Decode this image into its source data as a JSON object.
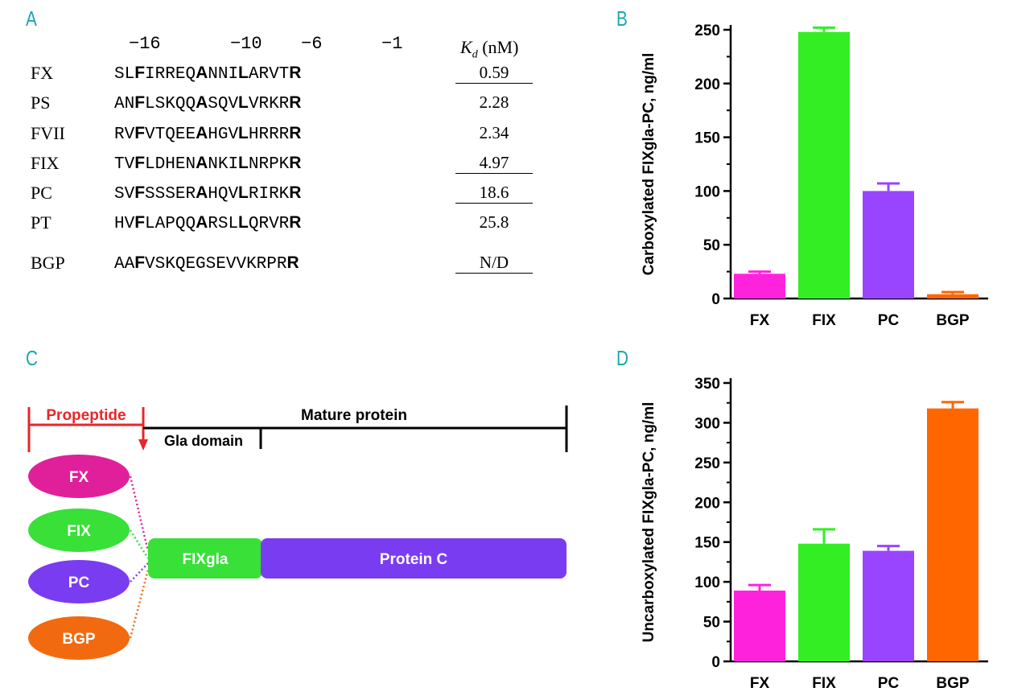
{
  "panels": {
    "a": "A",
    "b": "B",
    "c": "C",
    "d": "D"
  },
  "panel_a": {
    "positions": [
      "−16",
      "−10",
      "−6",
      "−1"
    ],
    "kd_header": {
      "k": "K",
      "sub": "d",
      "unit": "(nM)"
    },
    "rows": [
      {
        "name": "FX",
        "seq": [
          "SL",
          "F",
          "IRREQ",
          "A",
          "NNI",
          "L",
          "ARVT",
          "R"
        ],
        "kd": "0.59",
        "underline": true
      },
      {
        "name": "PS",
        "seq": [
          "AN",
          "F",
          "LSKQQ",
          "A",
          "SQV",
          "L",
          "VRKR",
          "R"
        ],
        "kd": "2.28",
        "underline": false
      },
      {
        "name": "FVII",
        "seq": [
          "RV",
          "F",
          "VTQEE",
          "A",
          "HGV",
          "L",
          "HRRR",
          "R"
        ],
        "kd": "2.34",
        "underline": false
      },
      {
        "name": "FIX",
        "seq": [
          "TV",
          "F",
          "LDHEN",
          "A",
          "NKI",
          "L",
          "NRPK",
          "R"
        ],
        "kd": "4.97",
        "underline": true
      },
      {
        "name": "PC",
        "seq": [
          "SV",
          "F",
          "SSSER",
          "A",
          "HQV",
          "L",
          "RIRK",
          "R"
        ],
        "kd": "18.6",
        "underline": true
      },
      {
        "name": "PT",
        "seq": [
          "HV",
          "F",
          "LAPQQ",
          "A",
          "RSL",
          "L",
          "QRVR",
          "R"
        ],
        "kd": "25.8",
        "underline": false
      },
      {
        "name": "BGP",
        "seq": [
          "AA",
          "F",
          "VSKQEGSEVVKRPR",
          "R"
        ],
        "kd": "N/D",
        "underline": true
      }
    ]
  },
  "panel_c": {
    "propeptide_label": "Propeptide",
    "mature_label": "Mature protein",
    "gla_label": "Gla domain",
    "ovals": [
      {
        "label": "FX",
        "color": "#e0209a"
      },
      {
        "label": "FIX",
        "color": "#38e038"
      },
      {
        "label": "PC",
        "color": "#7a3cf0"
      },
      {
        "label": "BGP",
        "color": "#f26a10"
      }
    ],
    "fixgla_label": "FIXgla",
    "protein_c_label": "Protein C",
    "fixgla_color": "#38e038",
    "protein_c_color": "#7a3cf0",
    "propeptide_color": "#e8262a"
  },
  "chart_data": [
    {
      "type": "bar",
      "categories": [
        "FX",
        "FIX",
        "PC",
        "BGP"
      ],
      "values": [
        23,
        248,
        100,
        4
      ],
      "errors": [
        2,
        4,
        7,
        2
      ],
      "colors": [
        "#ff22dd",
        "#33ee22",
        "#9944ff",
        "#ff6600"
      ],
      "ylabel": "Carboxylated FIXgla-PC, ng/ml",
      "ylim": [
        0,
        250
      ],
      "yticks": [
        0,
        50,
        100,
        150,
        200,
        250
      ]
    },
    {
      "type": "bar",
      "categories": [
        "FX",
        "FIX",
        "PC",
        "BGP"
      ],
      "values": [
        89,
        148,
        139,
        318
      ],
      "errors": [
        7,
        18,
        6,
        8
      ],
      "colors": [
        "#ff22dd",
        "#33ee22",
        "#9944ff",
        "#ff6600"
      ],
      "ylabel": "Uncarboxylated FIXgla-PC, ng/ml",
      "ylim": [
        0,
        350
      ],
      "yticks": [
        0,
        50,
        100,
        150,
        200,
        250,
        300,
        350
      ]
    }
  ]
}
